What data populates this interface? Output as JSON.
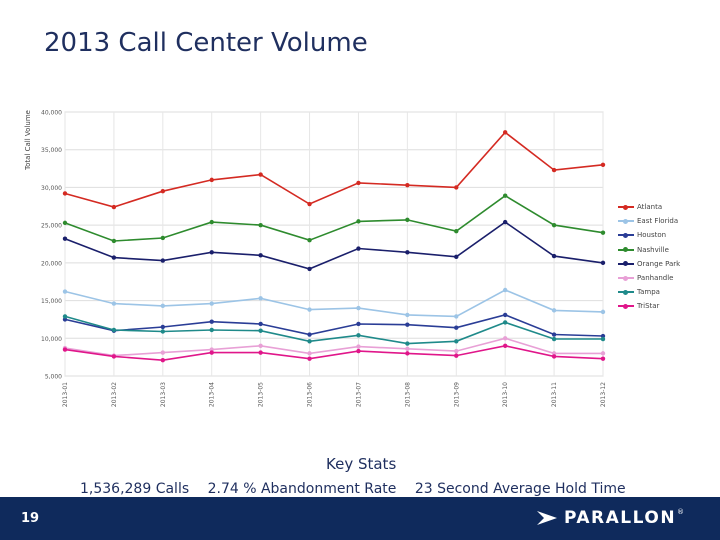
{
  "slide": {
    "title": "2013 Call Center Volume",
    "page_number": "19",
    "logo_text": "PARALLON",
    "logo_registered": "®"
  },
  "stats": {
    "heading": "Key Stats",
    "items": [
      "1,536,289 Calls",
      "2.74 % Abandonment Rate",
      "23 Second Average Hold Time"
    ]
  },
  "chart_data": {
    "type": "line",
    "ylabel": "Total Call Volume",
    "ylim": [
      5000,
      40000
    ],
    "yticks": [
      5000,
      10000,
      15000,
      20000,
      25000,
      30000,
      35000,
      40000
    ],
    "ytick_labels": [
      "5,000",
      "10,000",
      "15,000",
      "20,000",
      "25,000",
      "30,000",
      "35,000",
      "40,000"
    ],
    "x": [
      "2013-01",
      "2013-02",
      "2013-03",
      "2013-04",
      "2013-05",
      "2013-06",
      "2013-07",
      "2013-08",
      "2013-09",
      "2013-10",
      "2013-11",
      "2013-12"
    ],
    "grid": true,
    "legend_position": "right",
    "series": [
      {
        "name": "Atlanta",
        "color": "#d42a22",
        "values": [
          29200,
          27400,
          29500,
          31000,
          31700,
          27800,
          30600,
          30300,
          30000,
          37300,
          32300,
          33000
        ]
      },
      {
        "name": "East Florida",
        "color": "#9cc4e6",
        "values": [
          16200,
          14600,
          14300,
          14600,
          15300,
          13800,
          14000,
          13100,
          12900,
          16400,
          13700,
          13500
        ]
      },
      {
        "name": "Houston",
        "color": "#2a3d96",
        "values": [
          12500,
          11000,
          11500,
          12200,
          11900,
          10500,
          11900,
          11800,
          11400,
          13100,
          10500,
          10300
        ]
      },
      {
        "name": "Nashville",
        "color": "#2e8b2e",
        "values": [
          25300,
          22900,
          23300,
          25400,
          25000,
          23000,
          25500,
          25700,
          24200,
          28900,
          25000,
          24000
        ]
      },
      {
        "name": "Orange Park",
        "color": "#1a1f6b",
        "values": [
          23200,
          20700,
          20300,
          21400,
          21000,
          19200,
          21900,
          21400,
          20800,
          25400,
          20900,
          20000
        ]
      },
      {
        "name": "Panhandle",
        "color": "#e8a0d6",
        "values": [
          8700,
          7700,
          8100,
          8500,
          9000,
          8000,
          8900,
          8600,
          8300,
          10000,
          8000,
          8000
        ]
      },
      {
        "name": "Tampa",
        "color": "#1f8a8a",
        "values": [
          12900,
          11100,
          10900,
          11100,
          11000,
          9600,
          10400,
          9300,
          9600,
          12100,
          9900,
          9900
        ]
      },
      {
        "name": "TriStar",
        "color": "#e0168a",
        "values": [
          8500,
          7600,
          7100,
          8100,
          8100,
          7300,
          8300,
          8000,
          7700,
          9000,
          7600,
          7300
        ]
      }
    ]
  }
}
